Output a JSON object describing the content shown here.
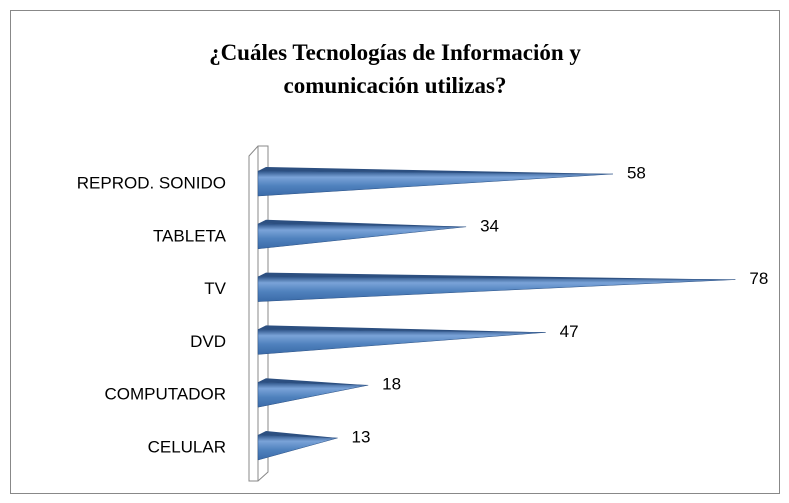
{
  "chart_data": {
    "type": "bar",
    "orientation": "horizontal",
    "title": "¿Cuáles Tecnologías de Información y comunicación utilizas?",
    "categories": [
      "REPROD. SONIDO",
      "TABLETA",
      "TV",
      "DVD",
      "COMPUTADOR",
      "CELULAR"
    ],
    "values": [
      58,
      34,
      78,
      47,
      18,
      13
    ],
    "color": "#4f81bd"
  }
}
